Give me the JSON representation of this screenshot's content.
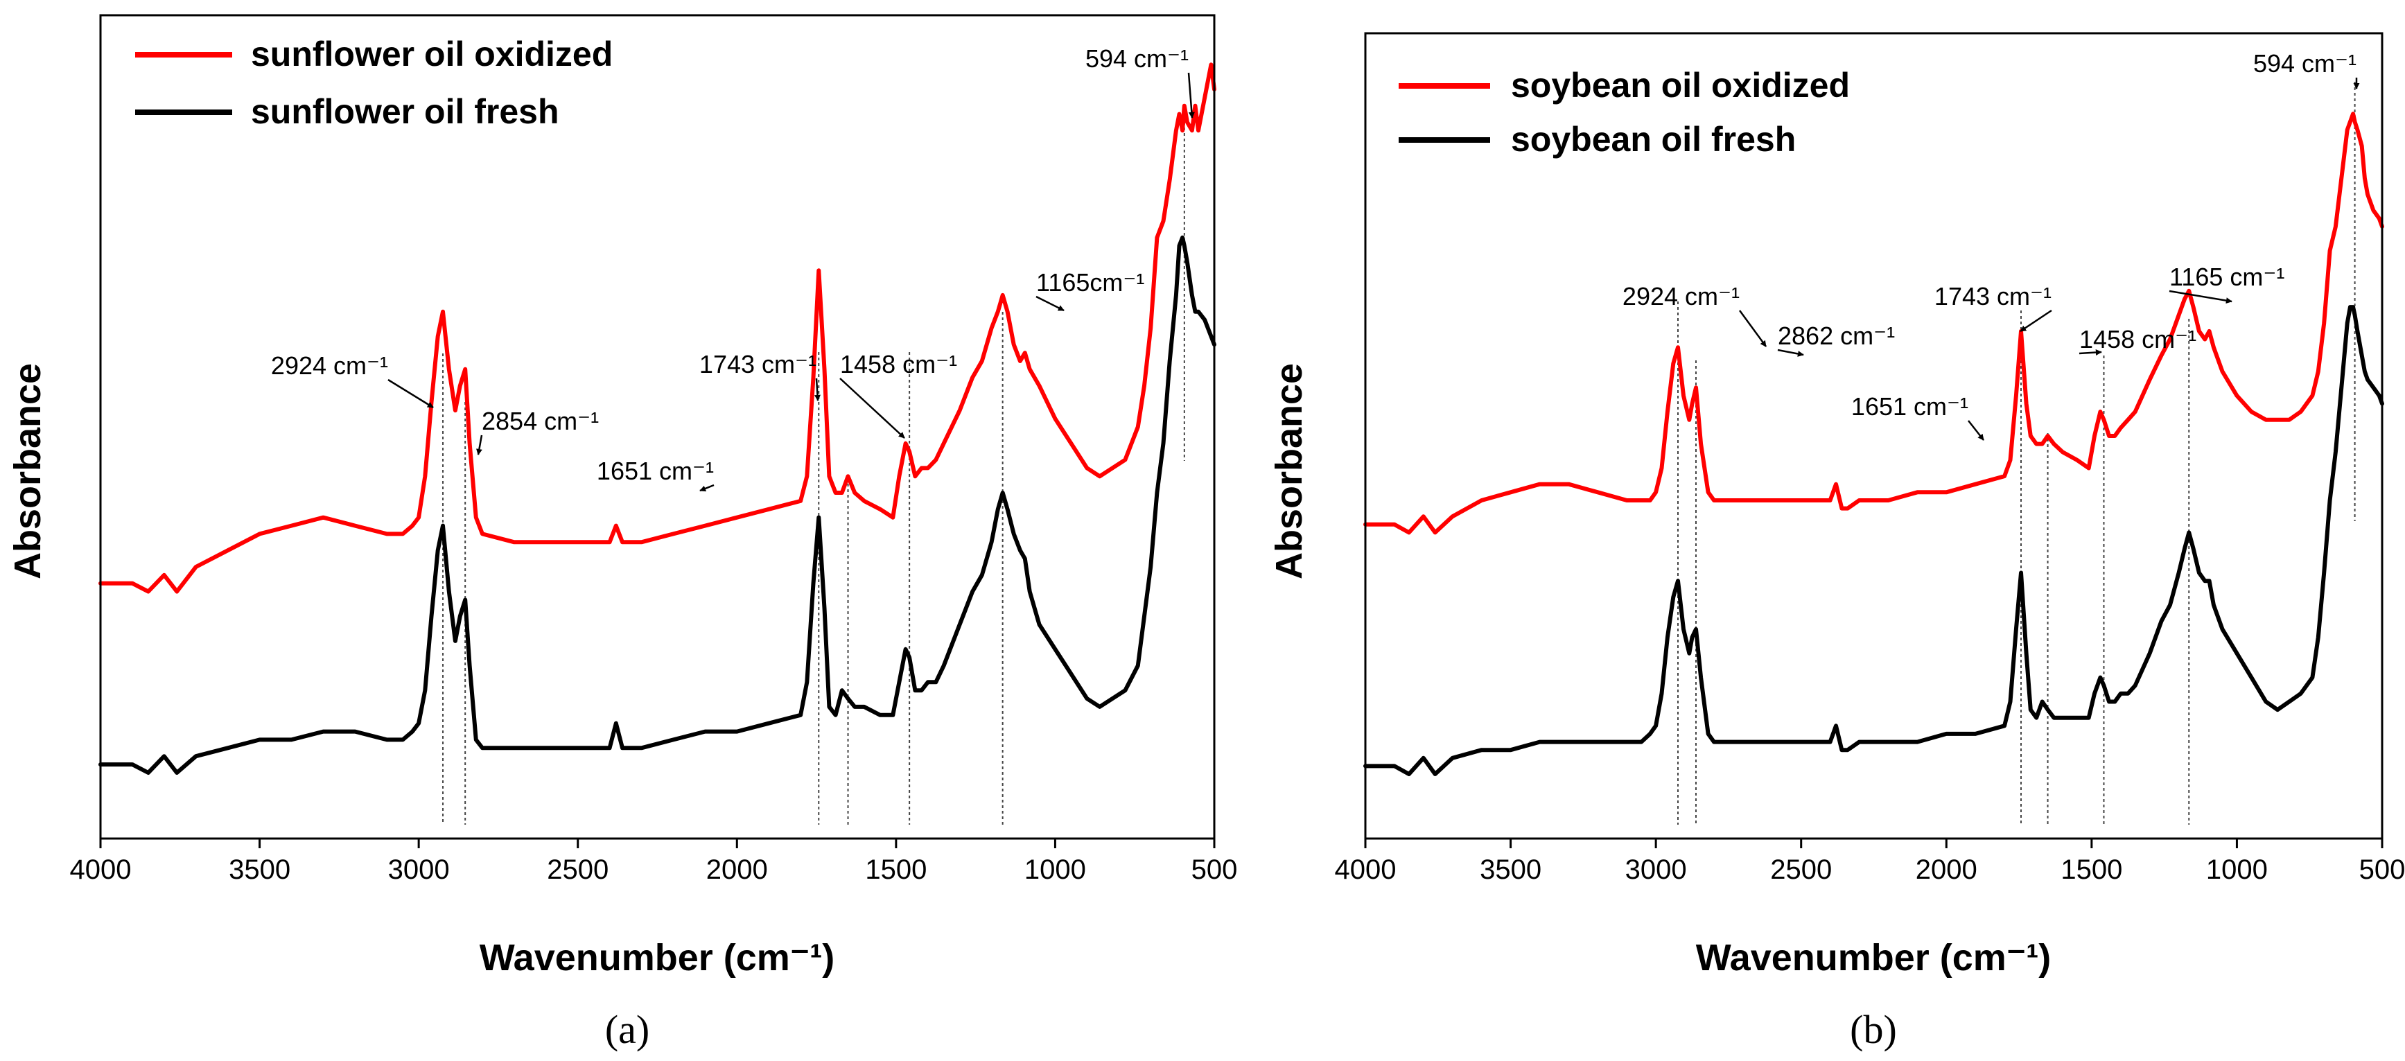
{
  "chart_data": [
    {
      "panel": "(a)",
      "type": "line",
      "xlabel": "Wavenumber (cm⁻¹)",
      "ylabel": "Absorbance",
      "xlim": [
        4000,
        500
      ],
      "xticks": [
        4000,
        3500,
        3000,
        2500,
        2000,
        1500,
        1000,
        500
      ],
      "ylim": [
        0,
        1
      ],
      "legend_position": "top-left",
      "legend": [
        "sunflower oil oxidized",
        "sunflower oil fresh"
      ],
      "series": [
        {
          "name": "sunflower oil oxidized",
          "color": "#ff0000",
          "x": [
            4000,
            3900,
            3850,
            3800,
            3760,
            3700,
            3600,
            3500,
            3400,
            3300,
            3200,
            3100,
            3050,
            3020,
            3000,
            2980,
            2960,
            2940,
            2924,
            2905,
            2885,
            2870,
            2854,
            2840,
            2820,
            2800,
            2700,
            2600,
            2500,
            2400,
            2380,
            2360,
            2340,
            2300,
            2200,
            2100,
            2000,
            1900,
            1800,
            1780,
            1760,
            1743,
            1725,
            1710,
            1690,
            1670,
            1651,
            1630,
            1600,
            1550,
            1510,
            1490,
            1470,
            1458,
            1440,
            1420,
            1400,
            1375,
            1350,
            1300,
            1260,
            1230,
            1200,
            1180,
            1165,
            1150,
            1130,
            1110,
            1095,
            1080,
            1050,
            1000,
            950,
            900,
            860,
            820,
            780,
            740,
            720,
            700,
            680,
            660,
            640,
            620,
            610,
            600,
            594,
            585,
            570,
            560,
            550,
            530,
            510,
            500
          ],
          "y": [
            0.31,
            0.31,
            0.3,
            0.32,
            0.3,
            0.33,
            0.35,
            0.37,
            0.38,
            0.39,
            0.38,
            0.37,
            0.37,
            0.38,
            0.39,
            0.44,
            0.53,
            0.61,
            0.64,
            0.57,
            0.52,
            0.55,
            0.57,
            0.48,
            0.39,
            0.37,
            0.36,
            0.36,
            0.36,
            0.36,
            0.38,
            0.36,
            0.36,
            0.36,
            0.37,
            0.38,
            0.39,
            0.4,
            0.41,
            0.44,
            0.56,
            0.69,
            0.57,
            0.44,
            0.42,
            0.42,
            0.44,
            0.42,
            0.41,
            0.4,
            0.39,
            0.44,
            0.48,
            0.47,
            0.44,
            0.45,
            0.45,
            0.46,
            0.48,
            0.52,
            0.56,
            0.58,
            0.62,
            0.64,
            0.66,
            0.64,
            0.6,
            0.58,
            0.59,
            0.57,
            0.55,
            0.51,
            0.48,
            0.45,
            0.44,
            0.45,
            0.46,
            0.5,
            0.55,
            0.62,
            0.73,
            0.75,
            0.8,
            0.86,
            0.88,
            0.86,
            0.89,
            0.87,
            0.86,
            0.89,
            0.86,
            0.9,
            0.94,
            0.91
          ]
        },
        {
          "name": "sunflower oil fresh",
          "color": "#000000",
          "x": [
            4000,
            3900,
            3850,
            3800,
            3760,
            3700,
            3600,
            3500,
            3400,
            3300,
            3200,
            3100,
            3050,
            3020,
            3000,
            2980,
            2960,
            2940,
            2924,
            2905,
            2885,
            2870,
            2854,
            2840,
            2820,
            2800,
            2700,
            2600,
            2500,
            2400,
            2380,
            2360,
            2340,
            2300,
            2200,
            2100,
            2000,
            1900,
            1800,
            1780,
            1760,
            1743,
            1725,
            1710,
            1690,
            1670,
            1651,
            1630,
            1600,
            1550,
            1510,
            1490,
            1470,
            1458,
            1440,
            1420,
            1400,
            1375,
            1350,
            1300,
            1260,
            1230,
            1200,
            1180,
            1165,
            1150,
            1130,
            1110,
            1095,
            1080,
            1050,
            1000,
            950,
            900,
            860,
            820,
            780,
            740,
            720,
            700,
            680,
            660,
            640,
            620,
            610,
            600,
            594,
            585,
            570,
            560,
            550,
            530,
            510,
            500
          ],
          "y": [
            0.09,
            0.09,
            0.08,
            0.1,
            0.08,
            0.1,
            0.11,
            0.12,
            0.12,
            0.13,
            0.13,
            0.12,
            0.12,
            0.13,
            0.14,
            0.18,
            0.27,
            0.35,
            0.38,
            0.3,
            0.24,
            0.27,
            0.29,
            0.21,
            0.12,
            0.11,
            0.11,
            0.11,
            0.11,
            0.11,
            0.14,
            0.11,
            0.11,
            0.11,
            0.12,
            0.13,
            0.13,
            0.14,
            0.15,
            0.19,
            0.31,
            0.39,
            0.28,
            0.16,
            0.15,
            0.18,
            0.17,
            0.16,
            0.16,
            0.15,
            0.15,
            0.19,
            0.23,
            0.22,
            0.18,
            0.18,
            0.19,
            0.19,
            0.21,
            0.26,
            0.3,
            0.32,
            0.36,
            0.4,
            0.42,
            0.4,
            0.37,
            0.35,
            0.34,
            0.3,
            0.26,
            0.23,
            0.2,
            0.17,
            0.16,
            0.17,
            0.18,
            0.21,
            0.27,
            0.33,
            0.42,
            0.48,
            0.58,
            0.66,
            0.72,
            0.73,
            0.72,
            0.7,
            0.66,
            0.64,
            0.64,
            0.63,
            0.61,
            0.6
          ]
        }
      ],
      "annotations": [
        {
          "text": "2924 cm⁻¹",
          "x": 2924
        },
        {
          "text": "2854 cm⁻¹",
          "x": 2854
        },
        {
          "text": "1743 cm⁻¹",
          "x": 1743
        },
        {
          "text": "1651 cm⁻¹",
          "x": 1651
        },
        {
          "text": "1458 cm⁻¹",
          "x": 1458
        },
        {
          "text": "1165cm⁻¹",
          "x": 1165
        },
        {
          "text": "594 cm⁻¹",
          "x": 594
        }
      ]
    },
    {
      "panel": "(b)",
      "type": "line",
      "xlabel": "Wavenumber (cm⁻¹)",
      "ylabel": "Absorbance",
      "xlim": [
        4000,
        500
      ],
      "xticks": [
        4000,
        3500,
        3000,
        2500,
        2000,
        1500,
        1000,
        500
      ],
      "ylim": [
        0,
        1
      ],
      "legend_position": "top-left",
      "legend": [
        "soybean oil oxidized",
        "soybean oil fresh"
      ],
      "series": [
        {
          "name": "soybean oil oxidized",
          "color": "#ff0000",
          "x": [
            4000,
            3900,
            3850,
            3800,
            3760,
            3700,
            3600,
            3500,
            3400,
            3300,
            3200,
            3100,
            3050,
            3020,
            3000,
            2980,
            2960,
            2940,
            2924,
            2905,
            2885,
            2875,
            2862,
            2845,
            2820,
            2800,
            2700,
            2600,
            2500,
            2400,
            2380,
            2360,
            2340,
            2300,
            2200,
            2100,
            2000,
            1900,
            1800,
            1780,
            1760,
            1743,
            1725,
            1710,
            1690,
            1670,
            1651,
            1630,
            1600,
            1550,
            1510,
            1490,
            1470,
            1458,
            1440,
            1420,
            1400,
            1375,
            1350,
            1300,
            1260,
            1230,
            1200,
            1180,
            1165,
            1150,
            1130,
            1110,
            1095,
            1080,
            1050,
            1000,
            950,
            900,
            860,
            820,
            780,
            740,
            720,
            700,
            680,
            660,
            640,
            620,
            610,
            600,
            594,
            585,
            570,
            560,
            550,
            530,
            510,
            500
          ],
          "y": [
            0.39,
            0.39,
            0.38,
            0.4,
            0.38,
            0.4,
            0.42,
            0.43,
            0.44,
            0.44,
            0.43,
            0.42,
            0.42,
            0.42,
            0.43,
            0.46,
            0.53,
            0.59,
            0.61,
            0.55,
            0.52,
            0.54,
            0.56,
            0.49,
            0.43,
            0.42,
            0.42,
            0.42,
            0.42,
            0.42,
            0.44,
            0.41,
            0.41,
            0.42,
            0.42,
            0.43,
            0.43,
            0.44,
            0.45,
            0.47,
            0.55,
            0.63,
            0.54,
            0.5,
            0.49,
            0.49,
            0.5,
            0.49,
            0.48,
            0.47,
            0.46,
            0.5,
            0.53,
            0.52,
            0.5,
            0.5,
            0.51,
            0.52,
            0.53,
            0.57,
            0.6,
            0.62,
            0.65,
            0.67,
            0.68,
            0.66,
            0.63,
            0.62,
            0.63,
            0.61,
            0.58,
            0.55,
            0.53,
            0.52,
            0.52,
            0.52,
            0.53,
            0.55,
            0.58,
            0.64,
            0.73,
            0.76,
            0.82,
            0.88,
            0.89,
            0.9,
            0.89,
            0.88,
            0.86,
            0.82,
            0.8,
            0.78,
            0.77,
            0.76
          ]
        },
        {
          "name": "soybean oil fresh",
          "color": "#000000",
          "x": [
            4000,
            3900,
            3850,
            3800,
            3760,
            3700,
            3600,
            3500,
            3400,
            3300,
            3200,
            3100,
            3050,
            3020,
            3000,
            2980,
            2960,
            2940,
            2924,
            2905,
            2885,
            2875,
            2862,
            2845,
            2820,
            2800,
            2700,
            2600,
            2500,
            2400,
            2380,
            2360,
            2340,
            2300,
            2200,
            2100,
            2000,
            1900,
            1800,
            1780,
            1760,
            1743,
            1725,
            1710,
            1690,
            1670,
            1651,
            1630,
            1600,
            1550,
            1510,
            1490,
            1470,
            1458,
            1440,
            1420,
            1400,
            1375,
            1350,
            1300,
            1260,
            1230,
            1200,
            1180,
            1165,
            1150,
            1130,
            1110,
            1095,
            1080,
            1050,
            1000,
            950,
            900,
            860,
            820,
            780,
            740,
            720,
            700,
            680,
            660,
            640,
            620,
            610,
            600,
            594,
            585,
            570,
            560,
            550,
            530,
            510,
            500
          ],
          "y": [
            0.09,
            0.09,
            0.08,
            0.1,
            0.08,
            0.1,
            0.11,
            0.11,
            0.12,
            0.12,
            0.12,
            0.12,
            0.12,
            0.13,
            0.14,
            0.18,
            0.25,
            0.3,
            0.32,
            0.26,
            0.23,
            0.25,
            0.26,
            0.2,
            0.13,
            0.12,
            0.12,
            0.12,
            0.12,
            0.12,
            0.14,
            0.11,
            0.11,
            0.12,
            0.12,
            0.12,
            0.13,
            0.13,
            0.14,
            0.17,
            0.26,
            0.33,
            0.23,
            0.16,
            0.15,
            0.17,
            0.16,
            0.15,
            0.15,
            0.15,
            0.15,
            0.18,
            0.2,
            0.19,
            0.17,
            0.17,
            0.18,
            0.18,
            0.19,
            0.23,
            0.27,
            0.29,
            0.33,
            0.36,
            0.38,
            0.36,
            0.33,
            0.32,
            0.32,
            0.29,
            0.26,
            0.23,
            0.2,
            0.17,
            0.16,
            0.17,
            0.18,
            0.2,
            0.25,
            0.33,
            0.42,
            0.48,
            0.56,
            0.64,
            0.66,
            0.66,
            0.65,
            0.63,
            0.6,
            0.58,
            0.57,
            0.56,
            0.55,
            0.54
          ]
        }
      ],
      "annotations": [
        {
          "text": "2924 cm⁻¹",
          "x": 2924
        },
        {
          "text": "2862 cm⁻¹",
          "x": 2862
        },
        {
          "text": "1743 cm⁻¹",
          "x": 1743
        },
        {
          "text": "1651 cm⁻¹",
          "x": 1651
        },
        {
          "text": "1458 cm⁻¹",
          "x": 1458
        },
        {
          "text": "1165 cm⁻¹",
          "x": 1165
        },
        {
          "text": "594 cm⁻¹",
          "x": 594
        }
      ]
    }
  ]
}
